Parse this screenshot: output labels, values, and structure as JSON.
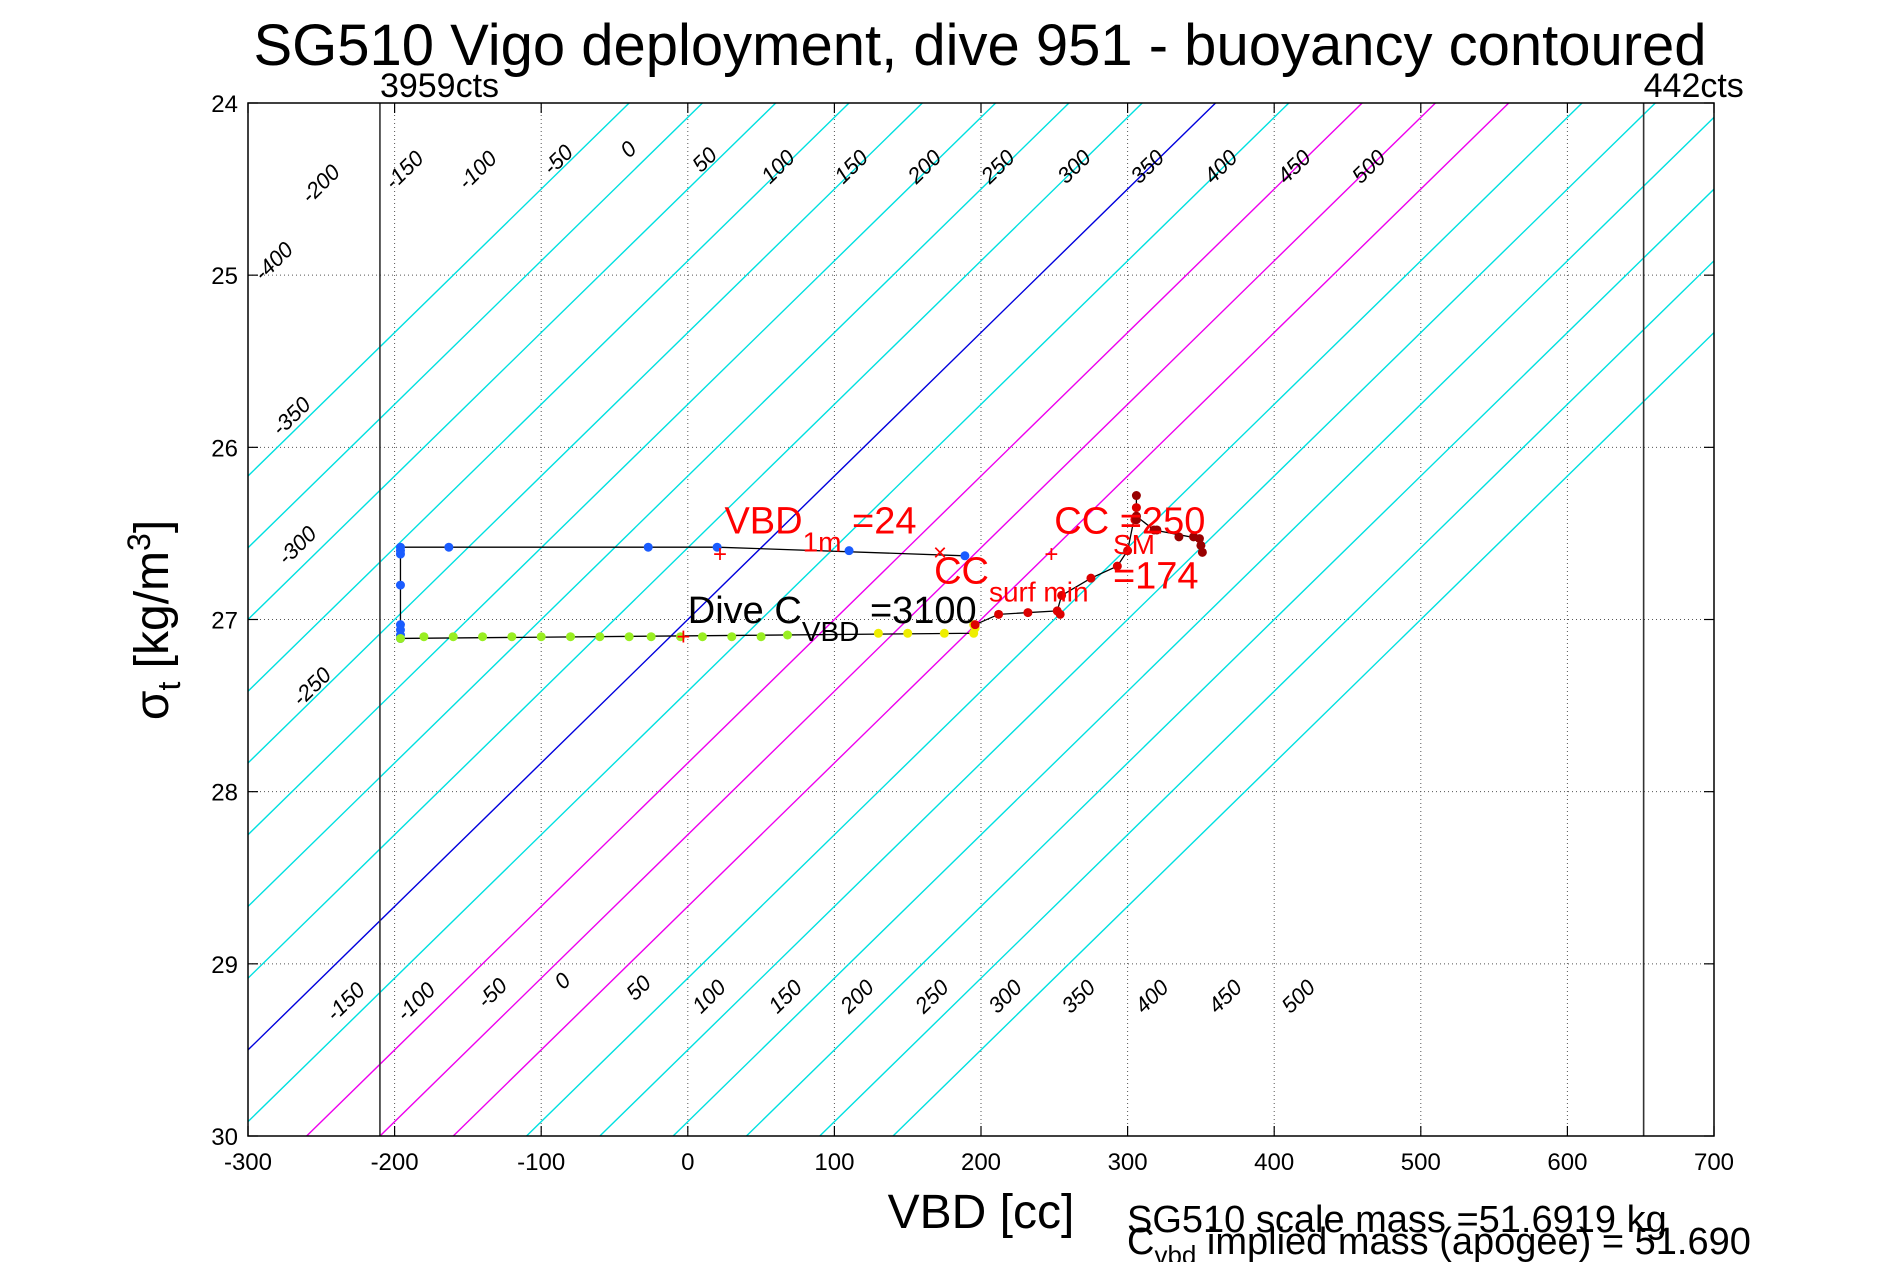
{
  "chart_data": {
    "type": "scatter",
    "title": "SG510 Vigo deployment, dive 951 - buoyancy contoured",
    "xlabel": "VBD [cc]",
    "ylabel": {
      "main": "σ",
      "sub": "t",
      "unit_prefix": " [kg/m",
      "unit_sup": "3",
      "unit_suffix": "]"
    },
    "xlim": [
      -300,
      700
    ],
    "ylim": [
      24,
      30
    ],
    "y_reversed": true,
    "grid": true,
    "xticks": [
      "-300",
      "-200",
      "-100",
      "0",
      "100",
      "200",
      "300",
      "400",
      "500",
      "600",
      "700"
    ],
    "xtick_values": [
      -300,
      -200,
      -100,
      0,
      100,
      200,
      300,
      400,
      500,
      600,
      700
    ],
    "yticks": [
      "24",
      "25",
      "26",
      "27",
      "28",
      "29",
      "30"
    ],
    "ytick_values": [
      24,
      25,
      26,
      27,
      28,
      29,
      30
    ],
    "limits": [
      {
        "x": -210,
        "label": "3959cts"
      },
      {
        "x": 652,
        "label": "442cts"
      }
    ],
    "contours": {
      "slope_cc_per_sigma": -120,
      "values": [
        -400,
        -350,
        -300,
        -250,
        -200,
        -150,
        -100,
        -50,
        0,
        50,
        100,
        150,
        200,
        250,
        300,
        350,
        400,
        450,
        500
      ],
      "highlight": {
        "0": "#0000dd",
        "100": "#ee00ee",
        "150": "#ee00ee",
        "200": "#ee00ee"
      },
      "default_color": "#00e0e0",
      "top_labels": [
        {
          "text": "-400",
          "x": -279,
          "y": 24.95
        },
        {
          "text": "-350",
          "x": -267,
          "y": 25.85
        },
        {
          "text": "-300",
          "x": -263,
          "y": 26.6
        },
        {
          "text": "-250",
          "x": -253,
          "y": 27.42
        },
        {
          "text": "-200",
          "x": -247,
          "y": 24.5
        },
        {
          "text": "-150",
          "x": -190,
          "y": 24.42
        },
        {
          "text": "-100",
          "x": -140,
          "y": 24.42
        },
        {
          "text": "-50",
          "x": -85,
          "y": 24.36
        },
        {
          "text": "0",
          "x": -37,
          "y": 24.3
        },
        {
          "text": "50",
          "x": 15,
          "y": 24.36
        },
        {
          "text": "100",
          "x": 65,
          "y": 24.4
        },
        {
          "text": "150",
          "x": 115,
          "y": 24.4
        },
        {
          "text": "200",
          "x": 165,
          "y": 24.4
        },
        {
          "text": "250",
          "x": 215,
          "y": 24.4
        },
        {
          "text": "300",
          "x": 267,
          "y": 24.4
        },
        {
          "text": "350",
          "x": 317,
          "y": 24.4
        },
        {
          "text": "400",
          "x": 367,
          "y": 24.4
        },
        {
          "text": "450",
          "x": 417,
          "y": 24.4
        },
        {
          "text": "500",
          "x": 468,
          "y": 24.4
        }
      ],
      "bottom_labels": [
        {
          "text": "-150",
          "x": -230,
          "y": 29.25
        },
        {
          "text": "-100",
          "x": -182,
          "y": 29.25
        },
        {
          "text": "-50",
          "x": -130,
          "y": 29.2
        },
        {
          "text": "0",
          "x": -82,
          "y": 29.13
        },
        {
          "text": "50",
          "x": -30,
          "y": 29.17
        },
        {
          "text": "100",
          "x": 18,
          "y": 29.22
        },
        {
          "text": "150",
          "x": 70,
          "y": 29.22
        },
        {
          "text": "200",
          "x": 119,
          "y": 29.22
        },
        {
          "text": "250",
          "x": 170,
          "y": 29.22
        },
        {
          "text": "300",
          "x": 220,
          "y": 29.22
        },
        {
          "text": "350",
          "x": 270,
          "y": 29.22
        },
        {
          "text": "400",
          "x": 320,
          "y": 29.22
        },
        {
          "text": "450",
          "x": 370,
          "y": 29.22
        },
        {
          "text": "500",
          "x": 420,
          "y": 29.22
        }
      ]
    },
    "series": [
      {
        "name": "",
        "color": "#1a5cff",
        "points": [
          [
            189,
            26.63
          ],
          [
            110,
            26.6
          ],
          [
            20,
            26.58
          ],
          [
            -27,
            26.58
          ],
          [
            -163,
            26.58
          ],
          [
            -196,
            26.58
          ],
          [
            -196,
            26.6
          ],
          [
            -196,
            26.62
          ],
          [
            -196,
            26.8
          ],
          [
            -196,
            27.03
          ],
          [
            -196,
            27.06
          ],
          [
            -196,
            27.09
          ],
          [
            -196,
            27.11
          ]
        ]
      },
      {
        "name": "",
        "color": "#99ee22",
        "points": [
          [
            -196,
            27.11
          ],
          [
            -180,
            27.1
          ],
          [
            -160,
            27.1
          ],
          [
            -140,
            27.1
          ],
          [
            -120,
            27.1
          ],
          [
            -100,
            27.1
          ],
          [
            -80,
            27.1
          ],
          [
            -60,
            27.1
          ],
          [
            -40,
            27.1
          ],
          [
            -25,
            27.1
          ],
          [
            -5,
            27.1
          ],
          [
            10,
            27.1
          ],
          [
            30,
            27.1
          ],
          [
            50,
            27.1
          ],
          [
            68,
            27.09
          ]
        ]
      },
      {
        "name": "",
        "color": "#eeee00",
        "points": [
          [
            130,
            27.08
          ],
          [
            150,
            27.08
          ],
          [
            175,
            27.08
          ],
          [
            195,
            27.08
          ],
          [
            196,
            27.05
          ],
          [
            195,
            27.03
          ]
        ]
      },
      {
        "name": "",
        "color": "#dd0000",
        "points": [
          [
            196,
            27.03
          ],
          [
            212,
            26.97
          ],
          [
            232,
            26.96
          ],
          [
            252,
            26.95
          ],
          [
            254,
            26.97
          ],
          [
            255,
            26.86
          ],
          [
            275,
            26.76
          ],
          [
            293,
            26.69
          ],
          [
            300,
            26.6
          ],
          [
            305,
            26.42
          ],
          [
            306,
            26.4
          ],
          [
            306,
            26.35
          ]
        ]
      },
      {
        "name": "",
        "color": "#990000",
        "points": [
          [
            306,
            26.28
          ],
          [
            306,
            26.4
          ],
          [
            318,
            26.48
          ],
          [
            335,
            26.52
          ],
          [
            349,
            26.53
          ],
          [
            350,
            26.57
          ],
          [
            351,
            26.61
          ],
          [
            345,
            26.52
          ],
          [
            320,
            26.48
          ],
          [
            306,
            26.42
          ]
        ]
      }
    ],
    "path_line": {
      "color": "#000000",
      "points": [
        [
          189,
          26.63
        ],
        [
          20,
          26.58
        ],
        [
          -196,
          26.58
        ],
        [
          -196,
          27.11
        ],
        [
          195,
          27.08
        ],
        [
          196,
          27.03
        ],
        [
          212,
          26.97
        ],
        [
          252,
          26.95
        ],
        [
          255,
          26.86
        ],
        [
          275,
          26.76
        ],
        [
          293,
          26.69
        ],
        [
          300,
          26.6
        ],
        [
          306,
          26.35
        ],
        [
          306,
          26.28
        ],
        [
          306,
          26.4
        ],
        [
          318,
          26.48
        ],
        [
          349,
          26.53
        ],
        [
          351,
          26.61
        ]
      ]
    },
    "markers": [
      {
        "symbol": "+",
        "x": 22,
        "y": 26.62,
        "color": "#ff0000"
      },
      {
        "symbol": "×",
        "x": 172,
        "y": 26.61,
        "color": "#ff0000"
      },
      {
        "symbol": "+",
        "x": 248,
        "y": 26.62,
        "color": "#ff0000"
      },
      {
        "symbol": "+",
        "x": -3,
        "y": 27.1,
        "color": "#ff0000"
      }
    ],
    "annotations": [
      {
        "main": "VBD",
        "sub": "1m",
        "rest": " =24",
        "x": 25,
        "y": 26.5,
        "color": "#ff0000"
      },
      {
        "main": "CC",
        "sub": "surf min",
        "rest": "",
        "x": 168,
        "y": 26.79,
        "color": "#ff0000"
      },
      {
        "main": "CC",
        "sub": "",
        "rest": " =250",
        "x": 250,
        "y": 26.5,
        "color": "#ff0000"
      },
      {
        "main": "SM",
        "sub": "",
        "rest": "",
        "x": 290,
        "y": 26.62,
        "color": "#ff0000",
        "small": true
      },
      {
        "main": "=174",
        "sub": "",
        "rest": "",
        "x": 290,
        "y": 26.82,
        "color": "#ff0000"
      },
      {
        "main": "Dive C",
        "sub": "VBD",
        "rest": " =3100",
        "x": 0,
        "y": 27.02,
        "color": "#000000"
      }
    ]
  },
  "footer": {
    "scale_mass": "SG510 scale mass =51.6919 kg",
    "implied_main": "C",
    "implied_sub": "vbd",
    "implied_rest": " implied mass (apogee) = 51.690"
  }
}
